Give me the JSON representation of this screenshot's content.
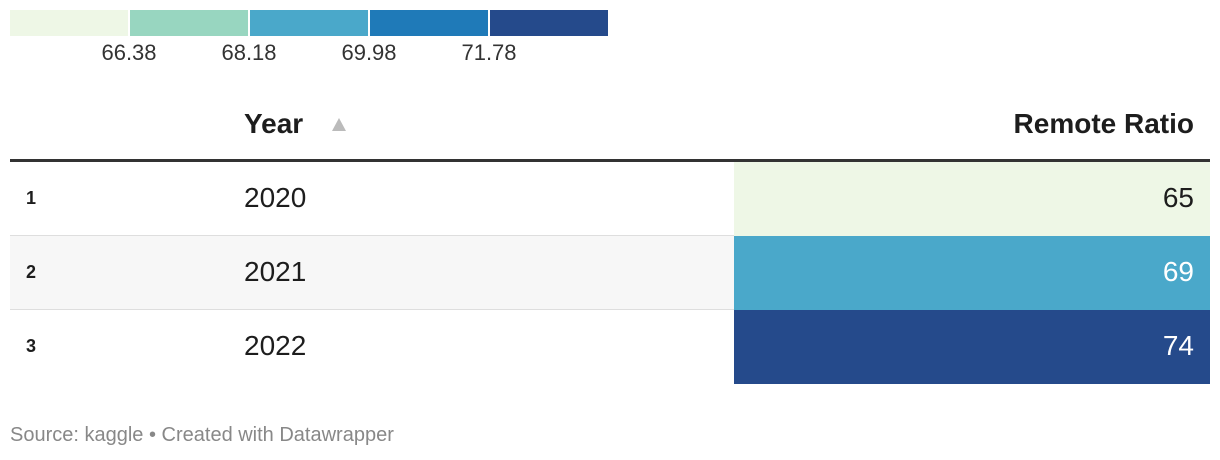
{
  "legend": {
    "colors": [
      "#eef7e6",
      "#98d6c0",
      "#4aa8ca",
      "#1f7ab8",
      "#254a8b"
    ],
    "ticks": [
      "66.38",
      "68.18",
      "69.98",
      "71.78"
    ]
  },
  "chart_data": {
    "type": "table",
    "columns": [
      "",
      "Year",
      "Remote Ratio"
    ],
    "rows": [
      {
        "index": "1",
        "year": "2020",
        "remote_ratio": 65,
        "color": "#eef7e6",
        "text_color": "#1d1d1d"
      },
      {
        "index": "2",
        "year": "2021",
        "remote_ratio": 69,
        "color": "#4aa8ca",
        "text_color": "#ffffff"
      },
      {
        "index": "3",
        "year": "2022",
        "remote_ratio": 74,
        "color": "#254a8b",
        "text_color": "#ffffff"
      }
    ],
    "sort": {
      "column": "Year",
      "direction": "ascending"
    }
  },
  "header": {
    "year_label": "Year",
    "ratio_label": "Remote Ratio"
  },
  "footer": {
    "text": "Source: kaggle • Created with Datawrapper"
  }
}
